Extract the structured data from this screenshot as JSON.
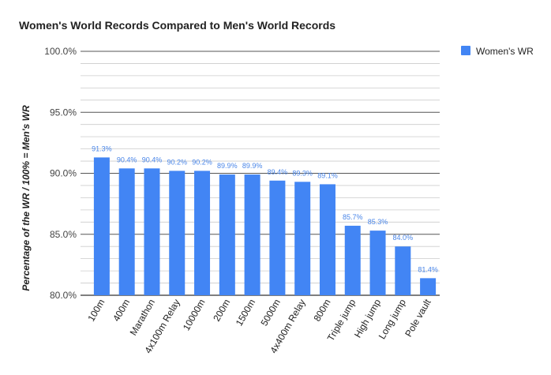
{
  "chart_data": {
    "type": "bar",
    "title": "Women's World Records Compared to Men's World Records",
    "ylabel": "Percentage of the WR / 100% = Men's WR",
    "xlabel": "",
    "categories": [
      "100m",
      "400m",
      "Marathon",
      "4x100m Relay",
      "10000m",
      "200m",
      "1500m",
      "5000m",
      "4x400m Relay",
      "800m",
      "Triple jump",
      "High jump",
      "Long jump",
      "Pole vault"
    ],
    "series": [
      {
        "name": "Women's WR",
        "values": [
          91.3,
          90.4,
          90.4,
          90.2,
          90.2,
          89.9,
          89.9,
          89.4,
          89.3,
          89.1,
          85.7,
          85.3,
          84.0,
          81.4
        ],
        "data_labels": [
          "91.3%",
          "90.4%",
          "90.4%",
          "90.2%",
          "90.2%",
          "89.9%",
          "89.9%",
          "89.4%",
          "89.3%",
          "89.1%",
          "85.7%",
          "85.3%",
          "84.0%",
          "81.4%"
        ]
      }
    ],
    "ylim": [
      80,
      100
    ],
    "yticks": [
      "80.0%",
      "85.0%",
      "90.0%",
      "95.0%",
      "100.0%"
    ],
    "grid": true,
    "legend": "top-right",
    "colors": {
      "bar": "#4285f4",
      "data_label": "#4a86e8",
      "major_grid": "#555555",
      "minor_grid": "#cccccc",
      "baseline": "#333333"
    }
  }
}
